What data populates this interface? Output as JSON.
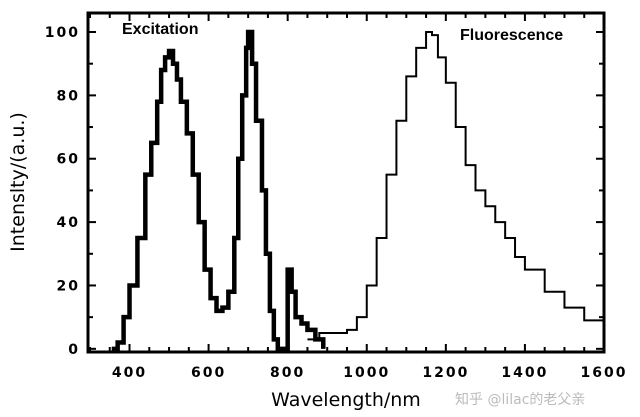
{
  "chart_data": {
    "type": "line",
    "title": "",
    "xlabel": "Wavelength/nm",
    "ylabel": "Intenslty/(a.u.)",
    "xlim": [
      295,
      1600
    ],
    "ylim": [
      -1,
      106
    ],
    "xticks": [
      400,
      600,
      800,
      1000,
      1200,
      1400,
      1600
    ],
    "yticks": [
      0,
      20,
      40,
      60,
      80,
      100
    ],
    "grid": false,
    "annotations": [
      "Excitation",
      "Fluorescence"
    ],
    "series": [
      {
        "name": "Excitation",
        "points": [
          [
            355,
            0
          ],
          [
            370,
            2
          ],
          [
            385,
            10
          ],
          [
            400,
            20
          ],
          [
            420,
            35
          ],
          [
            440,
            55
          ],
          [
            455,
            65
          ],
          [
            470,
            78
          ],
          [
            480,
            88
          ],
          [
            490,
            92
          ],
          [
            500,
            94
          ],
          [
            510,
            90
          ],
          [
            520,
            85
          ],
          [
            530,
            78
          ],
          [
            545,
            68
          ],
          [
            560,
            55
          ],
          [
            575,
            40
          ],
          [
            590,
            25
          ],
          [
            605,
            16
          ],
          [
            620,
            12
          ],
          [
            635,
            13
          ],
          [
            650,
            18
          ],
          [
            665,
            35
          ],
          [
            675,
            60
          ],
          [
            685,
            80
          ],
          [
            695,
            95
          ],
          [
            700,
            100
          ],
          [
            710,
            90
          ],
          [
            720,
            72
          ],
          [
            735,
            50
          ],
          [
            745,
            30
          ],
          [
            755,
            12
          ],
          [
            765,
            3
          ],
          [
            775,
            0
          ],
          [
            790,
            0
          ],
          [
            800,
            25
          ],
          [
            810,
            18
          ],
          [
            820,
            10
          ],
          [
            835,
            8
          ],
          [
            850,
            6
          ],
          [
            870,
            3
          ],
          [
            890,
            0
          ]
        ]
      },
      {
        "name": "Fluorescence",
        "points": [
          [
            850,
            3
          ],
          [
            880,
            5
          ],
          [
            950,
            6
          ],
          [
            975,
            10
          ],
          [
            1000,
            20
          ],
          [
            1025,
            35
          ],
          [
            1050,
            55
          ],
          [
            1075,
            72
          ],
          [
            1100,
            86
          ],
          [
            1125,
            95
          ],
          [
            1150,
            100
          ],
          [
            1165,
            99
          ],
          [
            1180,
            92
          ],
          [
            1200,
            84
          ],
          [
            1225,
            70
          ],
          [
            1250,
            58
          ],
          [
            1275,
            50
          ],
          [
            1300,
            45
          ],
          [
            1325,
            40
          ],
          [
            1350,
            35
          ],
          [
            1375,
            29
          ],
          [
            1400,
            25
          ],
          [
            1450,
            18
          ],
          [
            1500,
            13
          ],
          [
            1550,
            9
          ],
          [
            1600,
            6
          ]
        ]
      }
    ]
  },
  "watermark": "知乎 @lilac的老父亲"
}
